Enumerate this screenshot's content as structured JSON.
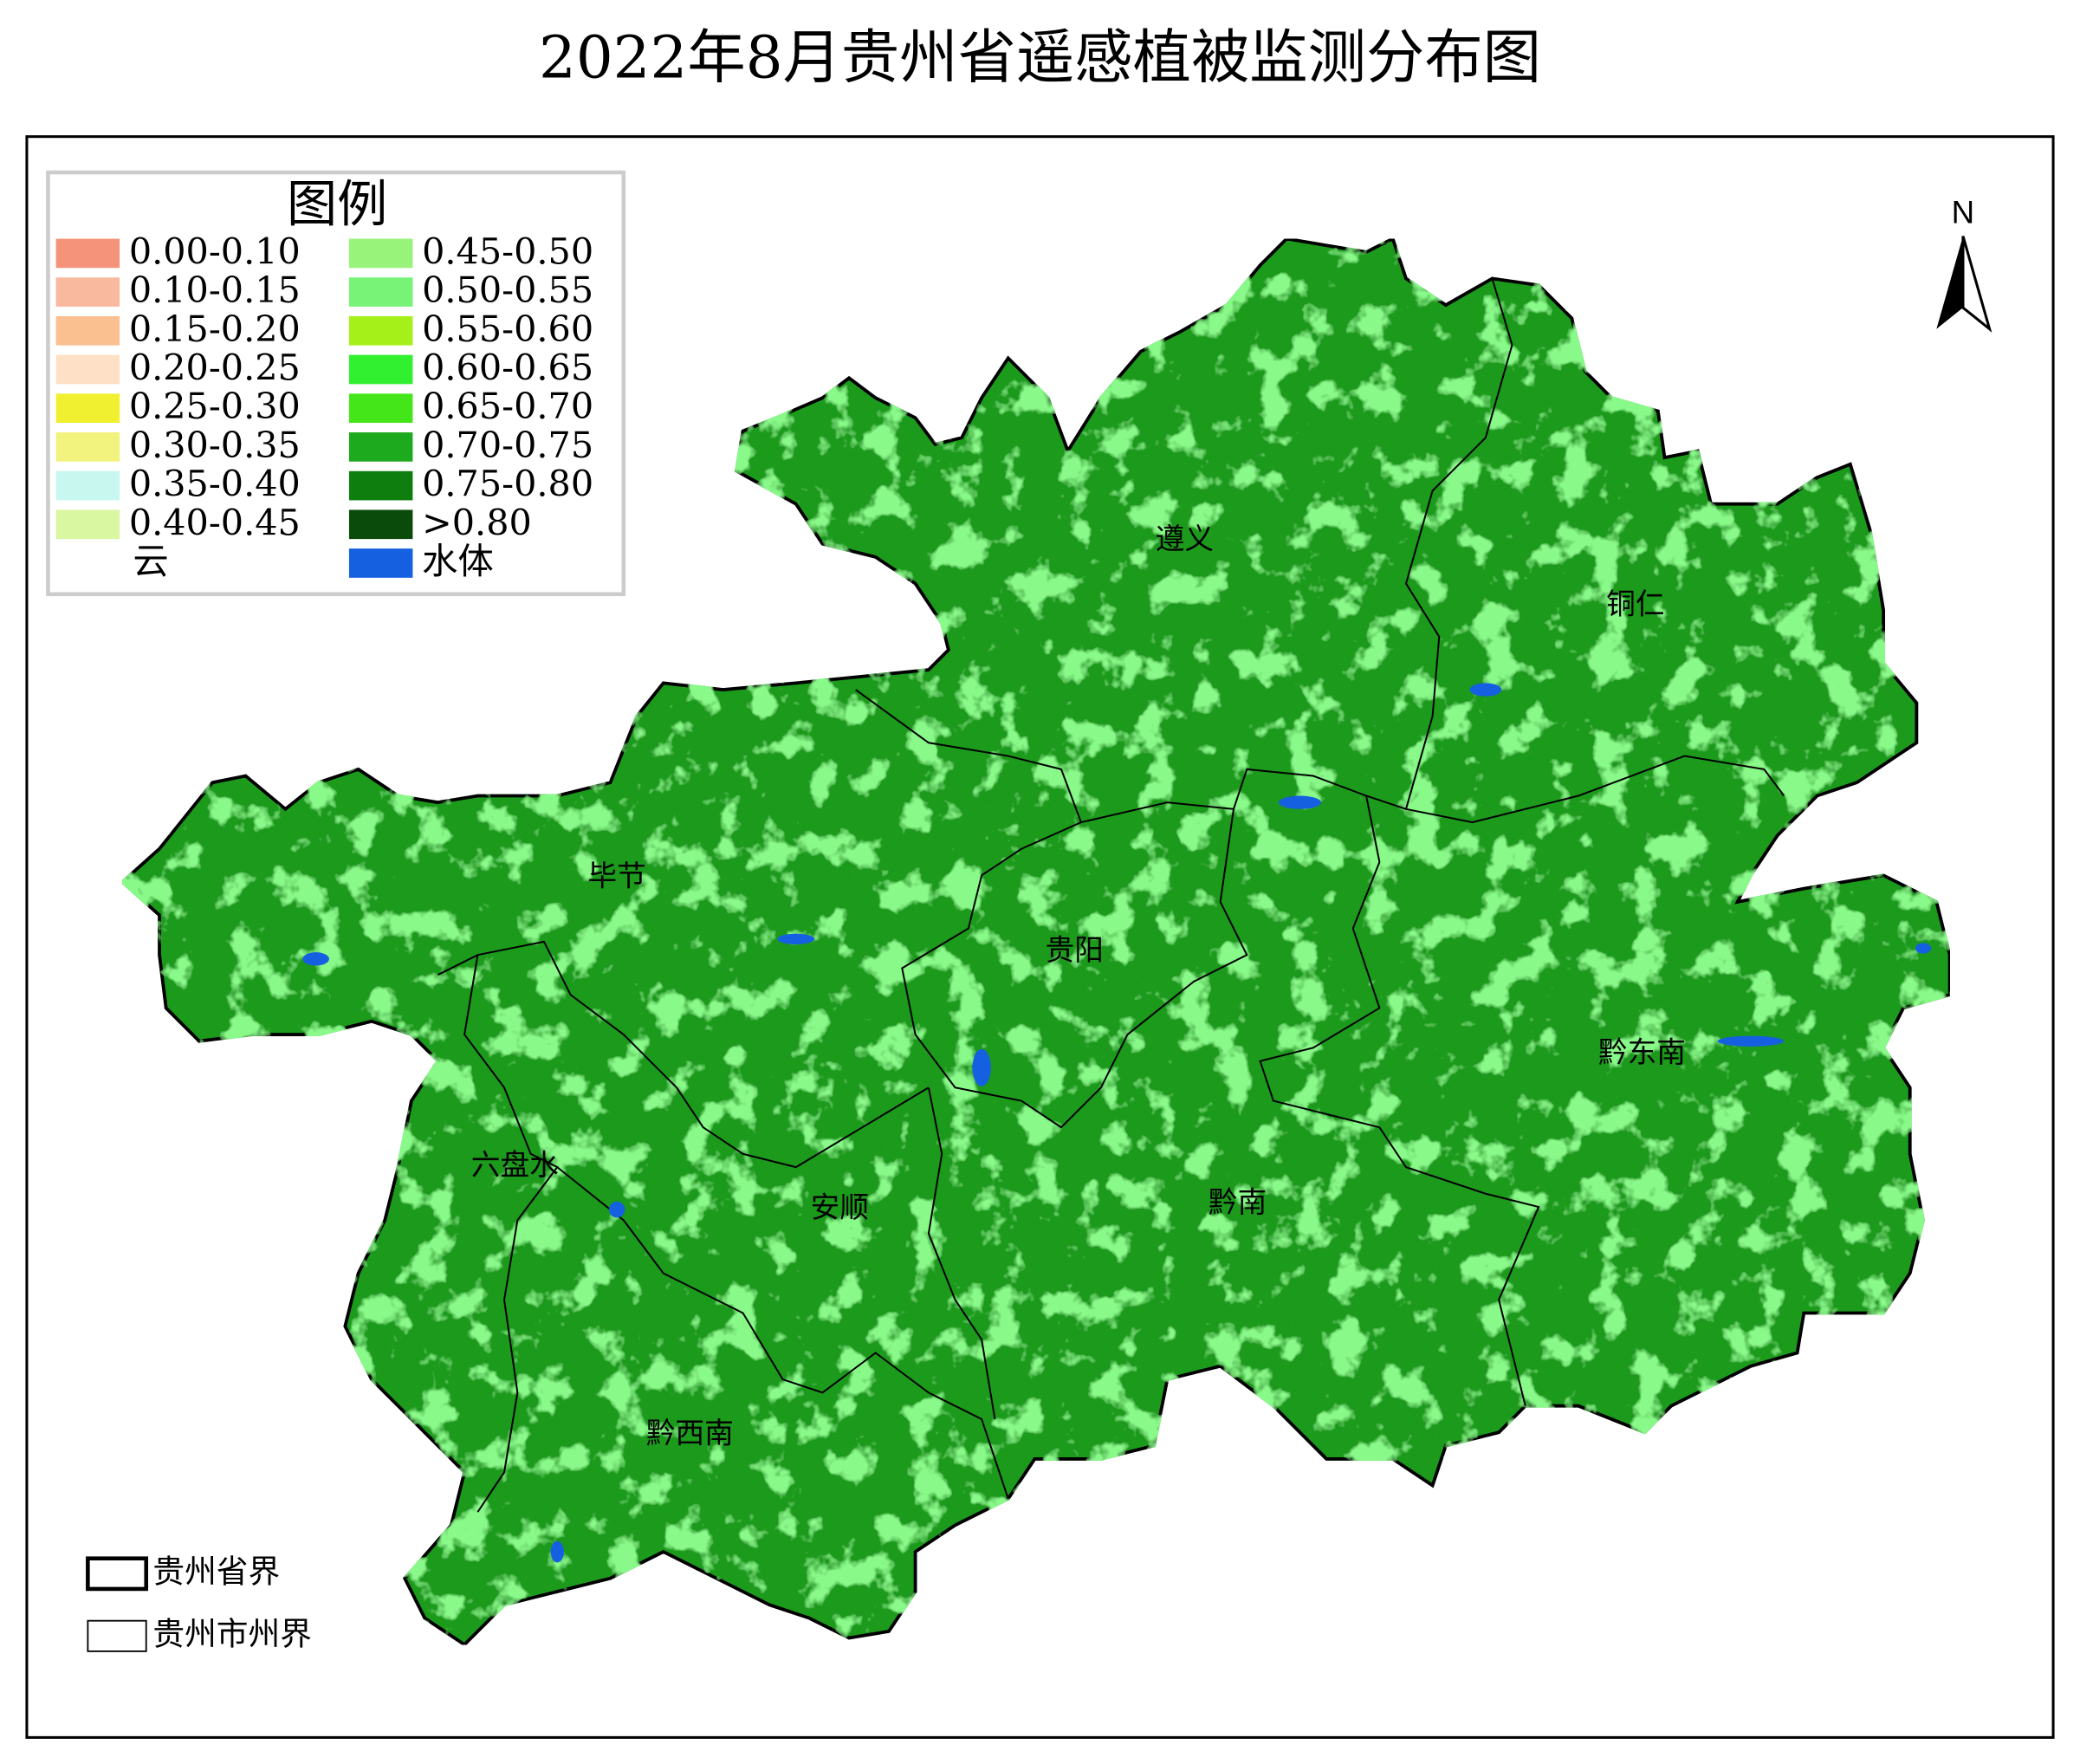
{
  "title": "2022年8月贵州省遥感植被监测分布图",
  "legend": {
    "title": "图例",
    "items": [
      {
        "label": "0.00-0.10",
        "color": "#f4937a"
      },
      {
        "label": "0.10-0.15",
        "color": "#f9b99e"
      },
      {
        "label": "0.15-0.20",
        "color": "#fbc08f"
      },
      {
        "label": "0.20-0.25",
        "color": "#fde0c5"
      },
      {
        "label": "0.25-0.30",
        "color": "#f0f030"
      },
      {
        "label": "0.30-0.35",
        "color": "#f2f27e"
      },
      {
        "label": "0.35-0.40",
        "color": "#c8f7f0"
      },
      {
        "label": "0.40-0.45",
        "color": "#d8f7a0"
      },
      {
        "label": "云",
        "color": "#ffffff"
      },
      {
        "label": "0.45-0.50",
        "color": "#98f37a"
      },
      {
        "label": "0.50-0.55",
        "color": "#78f378"
      },
      {
        "label": "0.55-0.60",
        "color": "#a6f01a"
      },
      {
        "label": "0.60-0.65",
        "color": "#30f030"
      },
      {
        "label": "0.65-0.70",
        "color": "#44e61a"
      },
      {
        "label": "0.70-0.75",
        "color": "#1eaa1e"
      },
      {
        "label": "0.75-0.80",
        "color": "#0e7e0e"
      },
      {
        "label": ">0.80",
        "color": "#0a4a0a"
      },
      {
        "label": "水体",
        "color": "#1560e0"
      }
    ]
  },
  "regions": [
    {
      "label": "遵义"
    },
    {
      "label": "铜仁"
    },
    {
      "label": "毕节"
    },
    {
      "label": "贵阳"
    },
    {
      "label": "黔东南"
    },
    {
      "label": "六盘水"
    },
    {
      "label": "安顺"
    },
    {
      "label": "黔南"
    },
    {
      "label": "黔西南"
    }
  ],
  "north": "N",
  "boundary_legend": [
    {
      "label": "贵州省界"
    },
    {
      "label": "贵州市州界"
    }
  ]
}
